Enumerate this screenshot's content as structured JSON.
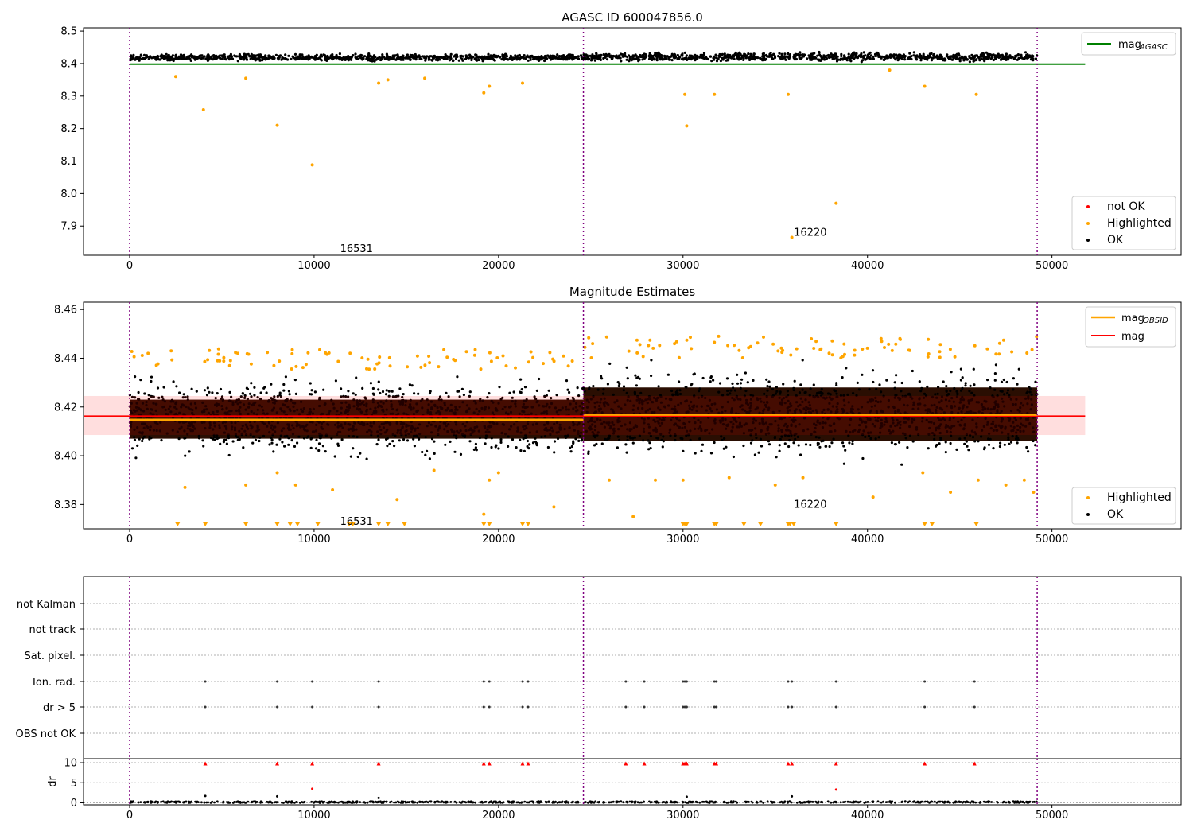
{
  "chart_data": [
    {
      "type": "scatter",
      "title": "AGASC ID 600047856.0",
      "xlim": [
        -2500,
        57000
      ],
      "ylim": [
        7.81,
        8.51
      ],
      "x_ticks": [
        0,
        10000,
        20000,
        30000,
        40000,
        50000
      ],
      "y_ticks": [
        7.9,
        8.0,
        8.1,
        8.2,
        8.3,
        8.4,
        8.5
      ],
      "obs_boundaries": [
        0,
        24600,
        49200
      ],
      "obs_labels": [
        {
          "x": 12300,
          "y": 7.83,
          "text": "16531"
        },
        {
          "x": 36900,
          "y": 7.88,
          "text": "16220"
        }
      ],
      "series": [
        {
          "name": "OK",
          "color": "#000000",
          "band": [
            [
              0,
              24600,
              8.405,
              8.432
            ],
            [
              24600,
              49200,
              8.403,
              8.438
            ]
          ]
        },
        {
          "name": "Highlighted",
          "color": "#ffa500",
          "x": [
            4000,
            8000,
            9900,
            13500,
            19200,
            19500,
            21300,
            30100,
            30200,
            31700,
            35700,
            35900,
            38300,
            41200,
            43100,
            45900,
            2500,
            6300,
            14000,
            16000
          ],
          "y": [
            8.258,
            8.21,
            8.088,
            8.34,
            8.31,
            8.33,
            8.34,
            8.305,
            8.208,
            8.305,
            8.305,
            7.865,
            7.97,
            8.38,
            8.33,
            8.305,
            8.36,
            8.355,
            8.35,
            8.355
          ]
        },
        {
          "name": "not OK",
          "color": "#ff0000",
          "x": [],
          "y": []
        },
        {
          "name": "mag_AGASC",
          "type": "line",
          "color": "#008000",
          "value": 8.398,
          "x_range": [
            0,
            51800
          ]
        }
      ],
      "legend": {
        "placement": "top-right / lower-right",
        "entries": [
          "mag_AGASC",
          "not OK",
          "Highlighted",
          "OK"
        ]
      }
    },
    {
      "type": "scatter",
      "title": "Magnitude Estimates",
      "xlim": [
        -2500,
        57000
      ],
      "ylim": [
        8.37,
        8.463
      ],
      "x_ticks": [
        0,
        10000,
        20000,
        30000,
        40000,
        50000
      ],
      "y_ticks": [
        8.38,
        8.4,
        8.42,
        8.44,
        8.46
      ],
      "obs_boundaries": [
        0,
        24600,
        49200
      ],
      "obs_labels": [
        {
          "x": 12300,
          "y": 8.373,
          "text": "16531"
        },
        {
          "x": 36900,
          "y": 8.38,
          "text": "16220"
        }
      ],
      "series": [
        {
          "name": "OK",
          "color": "#000000",
          "band": [
            [
              0,
              24600,
              8.396,
              8.435
            ],
            [
              24600,
              49200,
              8.395,
              8.44
            ]
          ]
        },
        {
          "name": "Highlighted",
          "color": "#ffa500",
          "x": [
            1000,
            3000,
            6300,
            8000,
            9000,
            11000,
            14500,
            16500,
            19200,
            19500,
            20000,
            23000,
            25100,
            26000,
            27300,
            28500,
            30000,
            32500,
            35000,
            36500,
            40300,
            43000,
            44500,
            46000,
            47500,
            48500,
            49000
          ],
          "y": [
            8.442,
            8.387,
            8.388,
            8.393,
            8.388,
            8.386,
            8.382,
            8.394,
            8.376,
            8.39,
            8.393,
            8.379,
            8.446,
            8.39,
            8.375,
            8.39,
            8.39,
            8.391,
            8.388,
            8.391,
            8.383,
            8.393,
            8.385,
            8.39,
            8.388,
            8.39,
            8.385
          ]
        },
        {
          "name": "mag_OBSID",
          "type": "step",
          "color": "#ffa500",
          "segments": [
            [
              0,
              24600,
              8.4148
            ],
            [
              24600,
              49200,
              8.4168
            ]
          ]
        },
        {
          "name": "mag",
          "type": "line",
          "color": "#ff0000",
          "value": 8.4162,
          "band": [
            8.4085,
            8.4245
          ],
          "x_range": [
            -2500,
            51800
          ]
        },
        {
          "name": "off-scale markers",
          "color": "#ffa500",
          "marker": "triangle-down",
          "x": [
            2600,
            4100,
            6300,
            8000,
            8700,
            9100,
            10200,
            11900,
            12100,
            13500,
            14000,
            14900,
            19200,
            19500,
            21300,
            21600,
            30000,
            30100,
            30200,
            31700,
            31800,
            33300,
            34200,
            35700,
            35800,
            36000,
            38300,
            43100,
            43500,
            45900
          ]
        }
      ],
      "legend": {
        "placement": "top-right / lower-right",
        "entries": [
          "mag_OBSID",
          "mag",
          "Highlighted",
          "OK"
        ]
      }
    },
    {
      "type": "scatter",
      "title": "",
      "xlim": [
        -2500,
        57000
      ],
      "categories": [
        "not Kalman",
        "not track",
        "Sat. pixel.",
        "Ion. rad.",
        "dr > 5",
        "OBS not OK"
      ],
      "obs_boundaries": [
        0,
        24600,
        49200
      ],
      "flag_x": [
        4100,
        8000,
        9900,
        13500,
        19200,
        19500,
        21300,
        21600,
        26900,
        27900,
        30000,
        30100,
        30200,
        31700,
        31800,
        35700,
        35900,
        38300,
        43100,
        45800
      ],
      "flags": {
        "Ion. rad.": "flag_x",
        "dr > 5": "flag_x"
      }
    },
    {
      "type": "scatter",
      "title": "",
      "ylabel": "dr",
      "xlim": [
        -2500,
        57000
      ],
      "ylim": [
        -0.5,
        11
      ],
      "y_ticks": [
        0,
        5,
        10
      ],
      "x_ticks": [
        0,
        10000,
        20000,
        30000,
        40000,
        50000
      ],
      "obs_boundaries": [
        0,
        24600,
        49200
      ],
      "series": [
        {
          "name": "dr clipped (>10)",
          "color": "#ff0000",
          "marker": "triangle-up",
          "x": [
            4100,
            8000,
            9900,
            13500,
            19200,
            19500,
            21300,
            21600,
            26900,
            27900,
            30000,
            30100,
            30200,
            31700,
            31800,
            35700,
            35900,
            38300,
            43100,
            45800
          ],
          "value": 9.9
        },
        {
          "name": "dr red",
          "color": "#ff0000",
          "x": [
            9900,
            38300
          ],
          "y": [
            3.5,
            3.3
          ]
        },
        {
          "name": "dr",
          "color": "#000000",
          "x": [
            4100,
            8000,
            13500,
            30200,
            35900
          ],
          "y": [
            1.7,
            1.6,
            1.2,
            1.5,
            1.6
          ],
          "band": [
            0,
            0.35
          ],
          "x_range": [
            0,
            49200
          ]
        }
      ]
    }
  ]
}
